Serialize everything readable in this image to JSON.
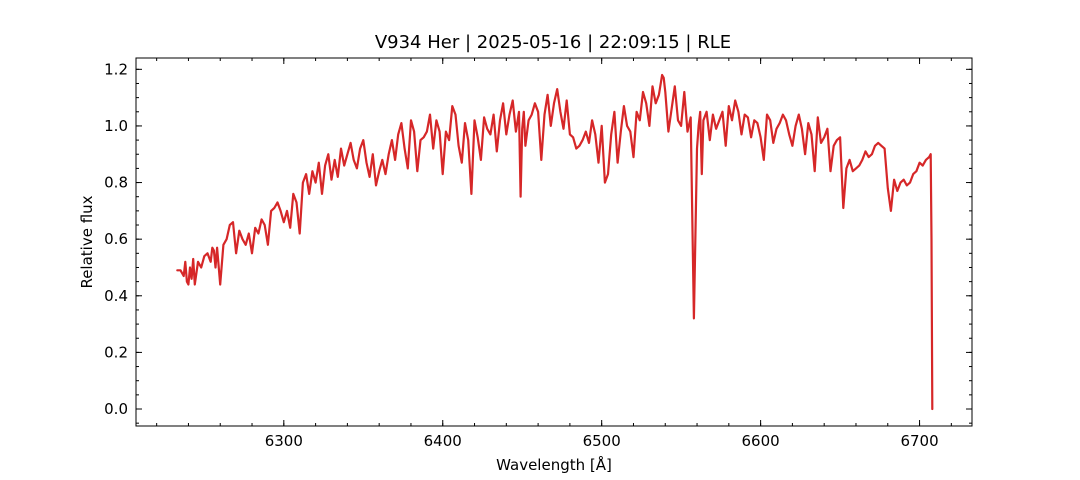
{
  "chart_data": {
    "type": "line",
    "title": "V934 Her | 2025-05-16 | 22:09:15 | RLE",
    "xlabel": "Wavelength [Å]",
    "ylabel": "Relative flux",
    "xlim": [
      6207,
      6733
    ],
    "ylim": [
      -0.06,
      1.24
    ],
    "xticks": [
      6300,
      6400,
      6500,
      6600,
      6700
    ],
    "xtick_labels": [
      "6300",
      "6400",
      "6500",
      "6600",
      "6700"
    ],
    "yticks": [
      0.0,
      0.2,
      0.4,
      0.6,
      0.8,
      1.0,
      1.2
    ],
    "ytick_labels": [
      "0.0",
      "0.2",
      "0.4",
      "0.6",
      "0.8",
      "1.0",
      "1.2"
    ],
    "x_minor_step": 20,
    "y_minor_step": 0.05,
    "grid": false,
    "series": [
      {
        "color": "#d62728",
        "x": [
          6233,
          6235,
          6237,
          6238,
          6239,
          6240,
          6241,
          6242,
          6243,
          6244,
          6246,
          6248,
          6250,
          6252,
          6254,
          6255,
          6256,
          6257,
          6258,
          6260,
          6262,
          6264,
          6266,
          6268,
          6270,
          6272,
          6274,
          6276,
          6278,
          6280,
          6282,
          6284,
          6286,
          6288,
          6290,
          6292,
          6294,
          6296,
          6298,
          6300,
          6302,
          6304,
          6306,
          6308,
          6310,
          6312,
          6314,
          6316,
          6318,
          6320,
          6322,
          6324,
          6326,
          6328,
          6330,
          6332,
          6334,
          6336,
          6338,
          6340,
          6342,
          6344,
          6346,
          6348,
          6350,
          6352,
          6354,
          6356,
          6358,
          6360,
          6362,
          6364,
          6366,
          6368,
          6370,
          6372,
          6374,
          6376,
          6378,
          6380,
          6382,
          6384,
          6386,
          6388,
          6390,
          6392,
          6394,
          6396,
          6398,
          6400,
          6402,
          6404,
          6406,
          6408,
          6410,
          6412,
          6414,
          6416,
          6418,
          6420,
          6422,
          6424,
          6426,
          6428,
          6430,
          6432,
          6434,
          6436,
          6438,
          6440,
          6442,
          6444,
          6446,
          6448,
          6449,
          6450,
          6451,
          6452,
          6454,
          6456,
          6458,
          6460,
          6462,
          6464,
          6466,
          6468,
          6470,
          6472,
          6474,
          6476,
          6478,
          6480,
          6482,
          6484,
          6486,
          6488,
          6490,
          6492,
          6494,
          6496,
          6498,
          6500,
          6502,
          6504,
          6506,
          6508,
          6510,
          6512,
          6514,
          6516,
          6518,
          6520,
          6522,
          6524,
          6526,
          6528,
          6530,
          6532,
          6534,
          6536,
          6538,
          6539,
          6540,
          6542,
          6544,
          6546,
          6548,
          6550,
          6552,
          6554,
          6556,
          6558,
          6560,
          6561,
          6562,
          6563,
          6564,
          6566,
          6568,
          6570,
          6572,
          6574,
          6576,
          6578,
          6580,
          6582,
          6584,
          6586,
          6588,
          6590,
          6592,
          6594,
          6596,
          6598,
          6600,
          6602,
          6604,
          6606,
          6608,
          6610,
          6612,
          6614,
          6616,
          6618,
          6620,
          6622,
          6624,
          6626,
          6628,
          6630,
          6632,
          6634,
          6636,
          6638,
          6640,
          6642,
          6644,
          6646,
          6648,
          6650,
          6652,
          6654,
          6656,
          6658,
          6660,
          6662,
          6664,
          6666,
          6668,
          6670,
          6672,
          6674,
          6676,
          6678,
          6680,
          6682,
          6684,
          6686,
          6688,
          6690,
          6692,
          6694,
          6696,
          6698,
          6700,
          6702,
          6704,
          6706,
          6707,
          6707.5,
          6708
        ],
        "y": [
          0.49,
          0.49,
          0.47,
          0.52,
          0.45,
          0.44,
          0.5,
          0.46,
          0.53,
          0.44,
          0.52,
          0.5,
          0.54,
          0.55,
          0.52,
          0.57,
          0.56,
          0.5,
          0.57,
          0.44,
          0.58,
          0.6,
          0.65,
          0.66,
          0.55,
          0.63,
          0.6,
          0.58,
          0.62,
          0.55,
          0.64,
          0.62,
          0.67,
          0.65,
          0.58,
          0.7,
          0.71,
          0.73,
          0.7,
          0.66,
          0.7,
          0.64,
          0.76,
          0.73,
          0.62,
          0.8,
          0.83,
          0.76,
          0.84,
          0.8,
          0.87,
          0.76,
          0.86,
          0.9,
          0.81,
          0.88,
          0.82,
          0.92,
          0.86,
          0.9,
          0.94,
          0.88,
          0.85,
          0.92,
          0.95,
          0.87,
          0.82,
          0.9,
          0.79,
          0.84,
          0.88,
          0.83,
          0.9,
          0.95,
          0.88,
          0.97,
          1.01,
          0.92,
          0.85,
          1.02,
          0.98,
          0.84,
          0.95,
          0.96,
          0.98,
          1.04,
          0.92,
          1.02,
          0.98,
          0.83,
          0.98,
          0.95,
          1.07,
          1.04,
          0.93,
          0.87,
          1.01,
          0.95,
          0.76,
          1.02,
          0.96,
          0.88,
          1.03,
          0.99,
          0.97,
          1.04,
          0.91,
          1.02,
          1.08,
          0.97,
          1.04,
          1.09,
          0.98,
          1.05,
          0.75,
          0.99,
          1.05,
          0.93,
          1.02,
          1.04,
          1.08,
          1.05,
          0.88,
          1.04,
          1.11,
          1.0,
          1.08,
          1.13,
          1.05,
          0.99,
          1.09,
          0.97,
          0.96,
          0.92,
          0.93,
          0.95,
          0.98,
          0.94,
          1.02,
          0.97,
          0.87,
          1.0,
          0.8,
          0.83,
          0.97,
          1.05,
          0.87,
          0.98,
          1.07,
          1.0,
          0.98,
          0.89,
          1.05,
          1.02,
          1.12,
          1.08,
          1.0,
          1.14,
          1.08,
          1.11,
          1.18,
          1.17,
          1.12,
          0.98,
          1.06,
          1.14,
          1.02,
          1.0,
          1.12,
          0.98,
          1.03,
          0.32,
          0.92,
          1.0,
          1.05,
          0.83,
          1.02,
          1.05,
          0.95,
          1.04,
          0.99,
          1.02,
          1.05,
          0.93,
          1.07,
          1.02,
          1.09,
          1.05,
          0.97,
          1.04,
          1.03,
          0.96,
          1.02,
          1.01,
          0.96,
          0.88,
          1.04,
          1.02,
          0.94,
          0.99,
          1.01,
          1.04,
          1.02,
          0.97,
          0.93,
          1.0,
          1.04,
          0.99,
          0.9,
          1.01,
          0.97,
          0.84,
          1.03,
          0.94,
          0.96,
          0.99,
          0.84,
          0.93,
          0.95,
          0.96,
          0.71,
          0.85,
          0.88,
          0.84,
          0.85,
          0.86,
          0.88,
          0.91,
          0.89,
          0.9,
          0.93,
          0.94,
          0.93,
          0.92,
          0.78,
          0.7,
          0.81,
          0.77,
          0.8,
          0.81,
          0.79,
          0.8,
          0.83,
          0.84,
          0.87,
          0.86,
          0.88,
          0.89,
          0.9,
          0.6,
          0.0
        ]
      }
    ]
  }
}
